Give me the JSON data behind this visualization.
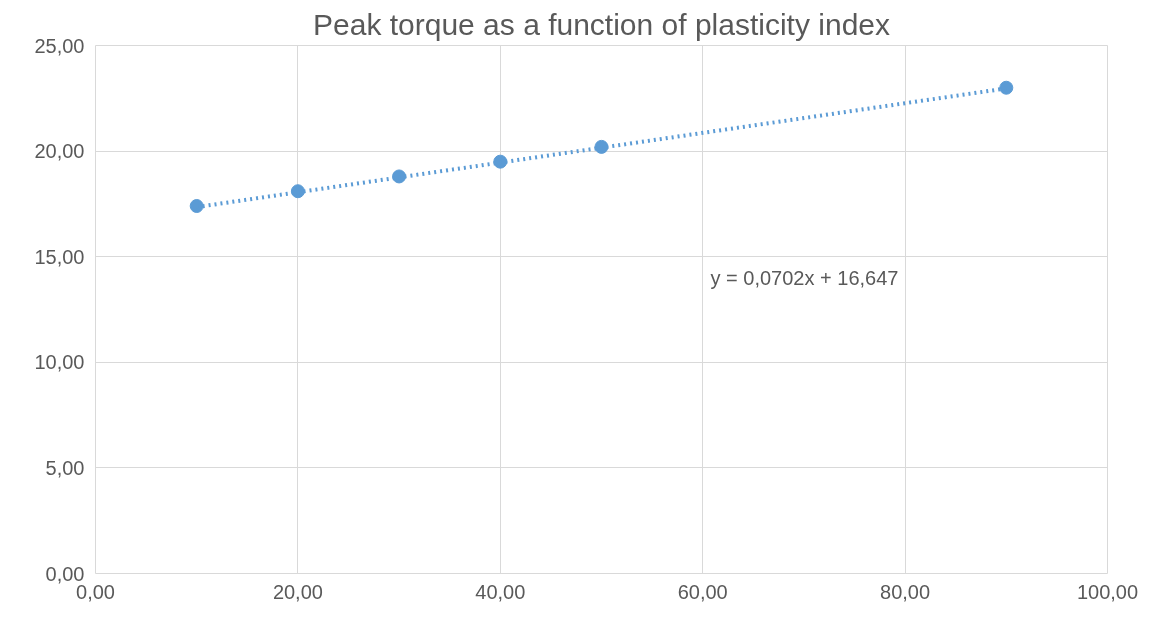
{
  "chart_data": {
    "type": "scatter",
    "title": "Peak torque as a function of plasticity index",
    "x": [
      10,
      20,
      30,
      40,
      50,
      90
    ],
    "series": [
      {
        "color": "#5b9bd5",
        "marker": "circle",
        "values": [
          17.4,
          18.1,
          18.8,
          19.5,
          20.2,
          23.0
        ]
      },
      {
        "type": "line",
        "color": "#5b9bd5",
        "marker": "none",
        "line_style": "dotted",
        "x": [
          10,
          90
        ],
        "values": [
          17.35,
          22.97
        ]
      }
    ],
    "xlim": [
      0,
      100
    ],
    "ylim": [
      0,
      25
    ],
    "xticks": [
      {
        "value": 0,
        "label": "0,00"
      },
      {
        "value": 20,
        "label": "20,00"
      },
      {
        "value": 40,
        "label": "40,00"
      },
      {
        "value": 60,
        "label": "60,00"
      },
      {
        "value": 80,
        "label": "80,00"
      },
      {
        "value": 100,
        "label": "100,00"
      }
    ],
    "yticks": [
      {
        "value": 0,
        "label": "0,00"
      },
      {
        "value": 5,
        "label": "5,00"
      },
      {
        "value": 10,
        "label": "10,00"
      },
      {
        "value": 15,
        "label": "15,00"
      },
      {
        "value": 20,
        "label": "20,00"
      },
      {
        "value": 25,
        "label": "25,00"
      }
    ],
    "grid": true,
    "annotations": [
      "y = 0,0702x + 16,647"
    ]
  }
}
